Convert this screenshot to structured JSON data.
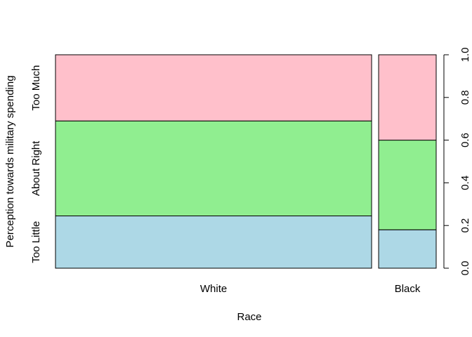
{
  "chart_data": {
    "type": "mosaic",
    "xlabel": "Race",
    "ylabel": "Perception towards military spending",
    "categories": [
      {
        "name": "White",
        "width_share": 0.846,
        "segments": [
          0.245,
          0.445,
          0.31
        ]
      },
      {
        "name": "Black",
        "width_share": 0.154,
        "segments": [
          0.18,
          0.42,
          0.4
        ]
      }
    ],
    "levels": [
      {
        "name": "Too Little",
        "color": "#ADD8E6"
      },
      {
        "name": "About Right",
        "color": "#90EE90"
      },
      {
        "name": "Too Much",
        "color": "#FFC0CB"
      }
    ],
    "y_ticks": [
      "0.0",
      "0.2",
      "0.4",
      "0.6",
      "0.8",
      "1.0"
    ],
    "ylim": [
      0,
      1
    ],
    "y_axis_side": "right",
    "grid": false
  }
}
